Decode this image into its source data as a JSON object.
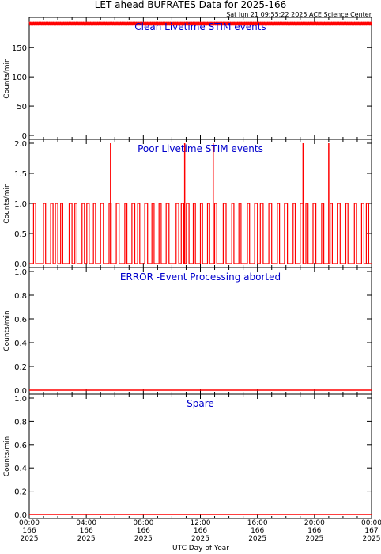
{
  "header": {
    "title": "LET ahead BUFRATES Data for 2025-166",
    "timestamp": "Sat Jun 21 09:55:22 2025 ACE Science Center"
  },
  "colors": {
    "data": "#ff0000",
    "label": "#0000cc",
    "axis": "#000000"
  },
  "x_axis": {
    "label": "UTC Day of Year",
    "ticks": [
      {
        "t": 0,
        "time": "00:00",
        "doy": "166",
        "year": "2025"
      },
      {
        "t": 4,
        "time": "04:00",
        "doy": "166",
        "year": "2025"
      },
      {
        "t": 8,
        "time": "08:00",
        "doy": "166",
        "year": "2025"
      },
      {
        "t": 12,
        "time": "12:00",
        "doy": "166",
        "year": "2025"
      },
      {
        "t": 16,
        "time": "16:00",
        "doy": "166",
        "year": "2025"
      },
      {
        "t": 20,
        "time": "20:00",
        "doy": "166",
        "year": "2025"
      },
      {
        "t": 24,
        "time": "00:00",
        "doy": "167",
        "year": "2025"
      }
    ]
  },
  "chart_data": [
    {
      "type": "line",
      "title": "Clean Livetime STIM events",
      "ylabel": "Counts/min",
      "ylim": [
        0,
        195
      ],
      "yticks": [
        0,
        50,
        100,
        150
      ],
      "series": [
        {
          "x_units": "hours",
          "y_band": [
            188,
            194
          ],
          "description_level": 191
        }
      ]
    },
    {
      "type": "line",
      "title": "Poor Livetime STIM events",
      "ylabel": "Counts/min",
      "ylim": [
        0,
        2
      ],
      "yticks": [
        0.0,
        0.5,
        1.0,
        1.5,
        2.0
      ],
      "series": [
        {
          "x_units": "hours",
          "baseline": 0,
          "pulses_value_1": [
            [
              0.3,
              0.6
            ],
            [
              1.0,
              1.3
            ],
            [
              1.5,
              2.0
            ],
            [
              2.2,
              2.5
            ],
            [
              2.8,
              3.0
            ],
            [
              3.2,
              3.5
            ],
            [
              3.7,
              4.2
            ],
            [
              4.5,
              4.8
            ],
            [
              5.0,
              5.4
            ],
            [
              5.6,
              5.9
            ],
            [
              6.1,
              6.5
            ],
            [
              6.7,
              7.0
            ],
            [
              7.2,
              7.4
            ],
            [
              7.6,
              7.9
            ],
            [
              8.1,
              8.3
            ],
            [
              8.6,
              8.9
            ],
            [
              9.1,
              9.4
            ],
            [
              9.6,
              9.8
            ],
            [
              10.3,
              11.2
            ],
            [
              11.5,
              11.8
            ],
            [
              12.0,
              12.3
            ],
            [
              12.5,
              12.8
            ],
            [
              13.0,
              13.3
            ],
            [
              13.6,
              14.0
            ],
            [
              14.2,
              14.5
            ],
            [
              14.7,
              15.0
            ],
            [
              15.3,
              15.6
            ],
            [
              15.8,
              16.0
            ],
            [
              16.2,
              16.6
            ],
            [
              16.8,
              17.2
            ],
            [
              17.4,
              17.7
            ],
            [
              17.9,
              18.3
            ],
            [
              18.5,
              18.8
            ],
            [
              19.0,
              19.2
            ],
            [
              19.4,
              19.7
            ],
            [
              19.9,
              20.3
            ],
            [
              20.5,
              20.8
            ],
            [
              21.1,
              21.4
            ],
            [
              21.6,
              22.0
            ],
            [
              22.2,
              22.5
            ],
            [
              22.8,
              23.1
            ],
            [
              23.3,
              23.8
            ]
          ],
          "spikes_value_2": [
            5.7,
            10.9,
            12.9,
            19.2,
            21.0
          ]
        }
      ]
    },
    {
      "type": "line",
      "title": "ERROR -Event Processing aborted",
      "ylabel": "Counts/min",
      "ylim": [
        0,
        1
      ],
      "yticks": [
        0.0,
        0.2,
        0.4,
        0.6,
        0.8,
        1.0
      ],
      "series": [
        {
          "x_units": "hours",
          "constant": 0
        }
      ]
    },
    {
      "type": "line",
      "title": "Spare",
      "ylabel": "Counts/min",
      "ylim": [
        0,
        1
      ],
      "yticks": [
        0.0,
        0.2,
        0.4,
        0.6,
        0.8,
        1.0
      ],
      "series": [
        {
          "x_units": "hours",
          "constant": 0
        }
      ]
    }
  ]
}
